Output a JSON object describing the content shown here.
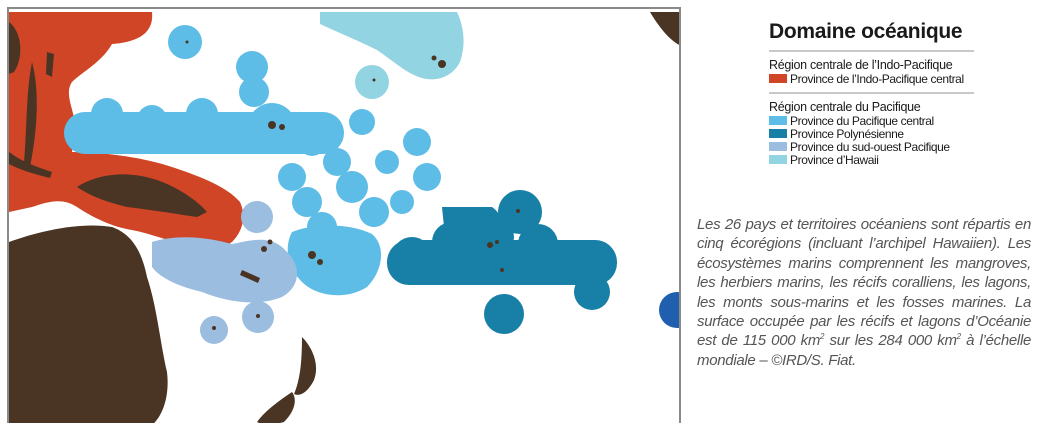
{
  "legend": {
    "title": "Domaine océanique",
    "regions": [
      {
        "title": "Région centrale de l’Indo-Pacifique",
        "items": [
          {
            "label": "Province de l’Indo-Pacifique central",
            "color": "#cf4526"
          }
        ]
      },
      {
        "title": "Région centrale du Pacifique",
        "items": [
          {
            "label": "Province du Pacifique central",
            "color": "#5ebde6"
          },
          {
            "label": "Province Polynésienne",
            "color": "#187fa6"
          },
          {
            "label": "Province du sud-ouest Pacifique",
            "color": "#9bbde0"
          },
          {
            "label": "Province d’Hawaii",
            "color": "#92d4e2"
          }
        ]
      }
    ]
  },
  "caption": {
    "part1": "Les 26 pays et territoires océaniens sont répartis en cinq écorégions (incluant l’archipel Hawaiien). Les écosystèmes marins comprennent les mangroves, les herbiers marins, les récifs coralliens, les lagons, les monts sous-marins et les fosses marines. La surface occupée par les récifs et lagons d’Océanie est de 115 000 km",
    "sup1": "2",
    "part2": " sur les 284 000 km",
    "sup2": "2",
    "part3": " à l’échelle mondiale – ©IRD/S. Fiat."
  },
  "map": {
    "land_color": "#4a3424",
    "sea_color": "#ffffff",
    "frame_color": "#8a8a8a",
    "extra_zone_color": "#1f5fae"
  }
}
